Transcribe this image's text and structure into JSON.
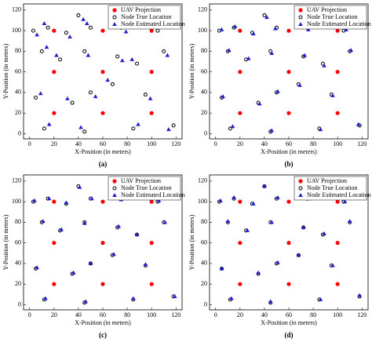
{
  "chart_data": [
    {
      "type": "scatter",
      "caption": "(a)",
      "xlabel": "X-Position (in meters)",
      "ylabel": "Y-Position (in meters)",
      "xlim": [
        -5,
        125
      ],
      "ylim": [
        -5,
        126
      ],
      "xticks": [
        0,
        20,
        40,
        60,
        80,
        100,
        120
      ],
      "yticks": [
        0,
        20,
        40,
        60,
        80,
        100,
        120
      ],
      "legend": "upper right",
      "series": [
        {
          "name": "UAV Projection",
          "color": "#ff0000",
          "x": [
            20,
            60,
            100,
            20,
            60,
            100,
            20,
            60,
            100
          ],
          "values": [
            100,
            100,
            100,
            60,
            60,
            60,
            20,
            20,
            20
          ]
        },
        {
          "name": "Node True Location",
          "color": "#000000",
          "x": [
            3,
            15,
            30,
            40,
            50,
            75,
            90,
            105,
            118,
            10,
            25,
            45,
            72,
            88,
            110,
            5,
            35,
            50,
            68,
            95,
            12,
            45,
            85,
            118
          ],
          "values": [
            100,
            103,
            98,
            115,
            103,
            103,
            115,
            100,
            112,
            80,
            72,
            80,
            75,
            68,
            80,
            35,
            30,
            40,
            48,
            38,
            5,
            2,
            5,
            8
          ]
        },
        {
          "name": "Node Estimated Location",
          "color": "#1f1fd0",
          "x": [
            6,
            12,
            33,
            44,
            47,
            79,
            86,
            108,
            114,
            14,
            22,
            48,
            76,
            84,
            113,
            9,
            31,
            54,
            64,
            99,
            16,
            42,
            89,
            114
          ],
          "values": [
            96,
            107,
            94,
            111,
            107,
            99,
            111,
            104,
            108,
            84,
            76,
            76,
            71,
            72,
            76,
            39,
            34,
            36,
            52,
            34,
            9,
            6,
            9,
            4
          ]
        }
      ]
    },
    {
      "type": "scatter",
      "caption": "(b)",
      "xlabel": "X-Position (in meters)",
      "ylabel": "Y-Position (in meters)",
      "xlim": [
        -5,
        125
      ],
      "ylim": [
        -5,
        126
      ],
      "xticks": [
        0,
        20,
        40,
        60,
        80,
        100,
        120
      ],
      "yticks": [
        0,
        20,
        40,
        60,
        80,
        100,
        120
      ],
      "legend": "upper right",
      "series": [
        {
          "name": "UAV Projection",
          "color": "#ff0000",
          "x": [
            20,
            60,
            100,
            20,
            60,
            100,
            20,
            60,
            100
          ],
          "values": [
            100,
            100,
            100,
            60,
            60,
            60,
            20,
            20,
            20
          ]
        },
        {
          "name": "Node True Location",
          "color": "#000000",
          "x": [
            3,
            15,
            30,
            40,
            50,
            75,
            90,
            105,
            118,
            10,
            25,
            45,
            72,
            88,
            110,
            5,
            35,
            50,
            68,
            95,
            12,
            45,
            85,
            118
          ],
          "values": [
            100,
            103,
            98,
            115,
            103,
            103,
            115,
            100,
            112,
            80,
            72,
            80,
            75,
            68,
            80,
            35,
            30,
            40,
            48,
            38,
            5,
            2,
            5,
            8
          ]
        },
        {
          "name": "Node Estimated Location",
          "color": "#1f1fd0",
          "x": [
            5,
            16,
            31,
            42,
            49,
            76,
            91,
            107,
            117,
            11,
            27,
            46,
            73,
            89,
            111,
            6,
            36,
            51,
            69,
            96,
            14,
            46,
            86,
            117
          ],
          "values": [
            101,
            104,
            97,
            113,
            102,
            101,
            114,
            101,
            111,
            81,
            73,
            78,
            76,
            66,
            81,
            36,
            29,
            41,
            47,
            37,
            7,
            3,
            4,
            9
          ]
        }
      ]
    },
    {
      "type": "scatter",
      "caption": "(c)",
      "xlabel": "X-Position (in meters)",
      "ylabel": "Y-Position (in meters)",
      "xlim": [
        -5,
        125
      ],
      "ylim": [
        -5,
        126
      ],
      "xticks": [
        0,
        20,
        40,
        60,
        80,
        100,
        120
      ],
      "yticks": [
        0,
        20,
        40,
        60,
        80,
        100,
        120
      ],
      "legend": "upper right",
      "series": [
        {
          "name": "UAV Projection",
          "color": "#ff0000",
          "x": [
            20,
            60,
            100,
            20,
            60,
            100,
            20,
            60,
            100
          ],
          "values": [
            100,
            100,
            100,
            60,
            60,
            60,
            20,
            20,
            20
          ]
        },
        {
          "name": "Node True Location",
          "color": "#000000",
          "x": [
            3,
            15,
            30,
            40,
            50,
            75,
            90,
            105,
            118,
            10,
            25,
            45,
            72,
            88,
            110,
            5,
            35,
            50,
            68,
            95,
            12,
            45,
            85,
            118
          ],
          "values": [
            100,
            103,
            98,
            115,
            103,
            103,
            115,
            100,
            112,
            80,
            72,
            80,
            75,
            68,
            80,
            35,
            30,
            40,
            48,
            38,
            5,
            2,
            5,
            8
          ]
        },
        {
          "name": "Node Estimated Location",
          "color": "#1f1fd0",
          "x": [
            4,
            16,
            30,
            41,
            51,
            75,
            91,
            106,
            118,
            11,
            26,
            45,
            73,
            88,
            111,
            6,
            36,
            50,
            69,
            95,
            13,
            46,
            85,
            119
          ],
          "values": [
            101,
            103,
            99,
            114,
            103,
            102,
            115,
            101,
            112,
            81,
            73,
            79,
            76,
            68,
            80,
            36,
            31,
            40,
            49,
            39,
            6,
            3,
            6,
            8
          ]
        }
      ]
    },
    {
      "type": "scatter",
      "caption": "(d)",
      "xlabel": "X-Position (in meters)",
      "ylabel": "Y-Position (in meters)",
      "xlim": [
        -5,
        125
      ],
      "ylim": [
        -5,
        126
      ],
      "xticks": [
        0,
        20,
        40,
        60,
        80,
        100,
        120
      ],
      "yticks": [
        0,
        20,
        40,
        60,
        80,
        100,
        120
      ],
      "legend": "upper right",
      "series": [
        {
          "name": "UAV Projection",
          "color": "#ff0000",
          "x": [
            20,
            60,
            100,
            20,
            60,
            100,
            20,
            60,
            100
          ],
          "values": [
            100,
            100,
            100,
            60,
            60,
            60,
            20,
            20,
            20
          ]
        },
        {
          "name": "Node True Location",
          "color": "#000000",
          "x": [
            3,
            15,
            30,
            40,
            50,
            75,
            90,
            105,
            118,
            10,
            25,
            45,
            72,
            88,
            110,
            5,
            35,
            50,
            68,
            95,
            12,
            45,
            85,
            118
          ],
          "values": [
            100,
            103,
            98,
            115,
            103,
            103,
            115,
            100,
            112,
            80,
            72,
            80,
            75,
            68,
            80,
            35,
            30,
            40,
            48,
            38,
            5,
            2,
            5,
            8
          ]
        },
        {
          "name": "Node Estimated Location",
          "color": "#1f1fd0",
          "x": [
            4,
            15,
            31,
            40,
            51,
            76,
            90,
            106,
            118,
            10,
            26,
            46,
            72,
            89,
            110,
            5,
            35,
            51,
            68,
            96,
            13,
            45,
            86,
            118
          ],
          "values": [
            101,
            104,
            98,
            115,
            104,
            103,
            116,
            100,
            113,
            81,
            72,
            80,
            75,
            69,
            81,
            35,
            31,
            41,
            48,
            38,
            6,
            3,
            5,
            9
          ]
        }
      ]
    }
  ]
}
